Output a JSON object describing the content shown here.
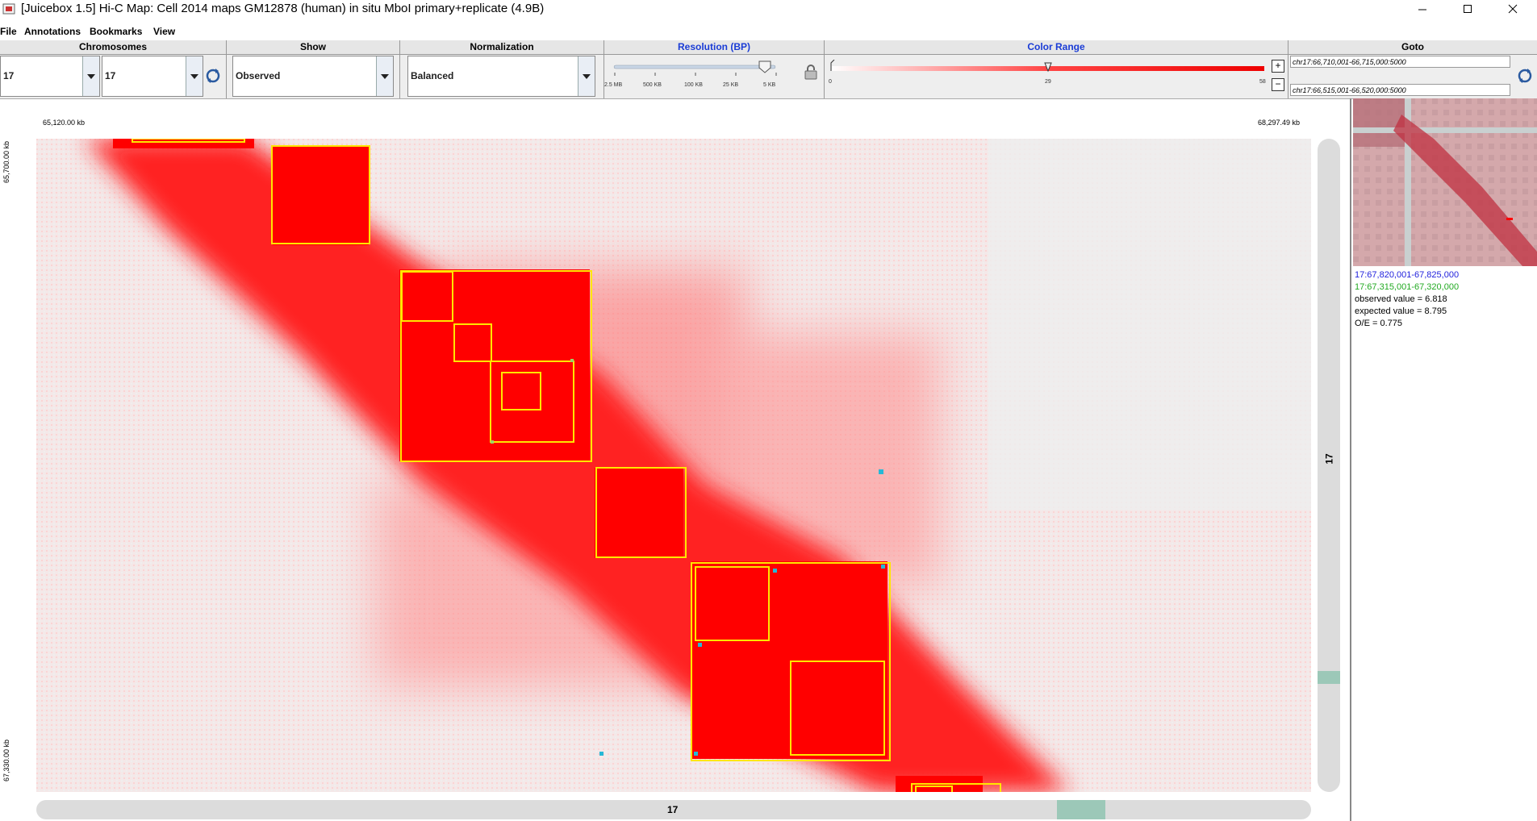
{
  "window": {
    "title": "[Juicebox 1.5] Hi-C Map:  Cell 2014 maps  GM12878 (human)  in situ MboI primary+replicate (4.9B)"
  },
  "menu": [
    "File",
    "Annotations",
    "Bookmarks",
    "View"
  ],
  "panels": {
    "chromosomes": {
      "label": "Chromosomes",
      "chrom_x": "17",
      "chrom_y": "17"
    },
    "show": {
      "label": "Show",
      "value": "Observed"
    },
    "normalization": {
      "label": "Normalization",
      "value": "Balanced"
    },
    "resolution": {
      "label": "Resolution (BP)",
      "ticks": [
        "2.5 MB",
        "500 KB",
        "100 KB",
        "25 KB",
        "5 KB"
      ],
      "selected": "5 KB"
    },
    "color_range": {
      "label": "Color Range",
      "min_label": "0",
      "mid_label": "29",
      "max_label": "58",
      "plus": "+",
      "minus": "−"
    },
    "goto": {
      "label": "Goto",
      "x_field": "chr17:66,710,001-66,715,000:5000",
      "y_field": "chr17:66,515,001-66,520,000:5000"
    }
  },
  "axes": {
    "x_start": "65,120.00 kb",
    "x_end": "68,297.49 kb",
    "y_start": "65,700.00 kb",
    "y_end": "67,330.00 kb",
    "chrom_label_h": "17",
    "chrom_label_v": "17"
  },
  "hover_info": {
    "x_range": "17:67,820,001-67,825,000",
    "y_range": "17:67,315,001-67,320,000",
    "observed": "observed value = 6.818",
    "expected": "expected value = 8.795",
    "oe": "O/E = 0.775"
  },
  "colors": {
    "heat": "#ff0000",
    "domain_box": "#ffe600",
    "loop_marker": "#26b8d6",
    "x_range_color": "#2222dd",
    "y_range_color": "#22aa22"
  }
}
